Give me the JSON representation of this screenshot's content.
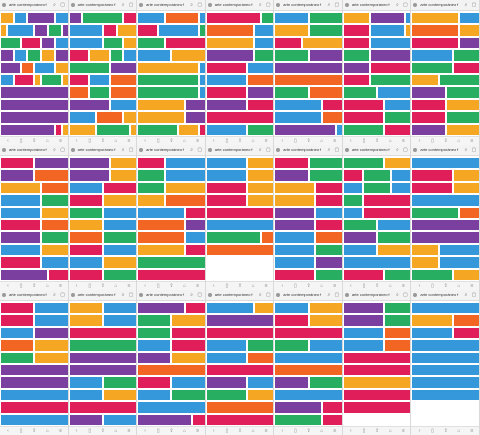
{
  "palette": {
    "R": "#e01e5a",
    "B": "#3498db",
    "G": "#27ae60",
    "Y": "#f5a623",
    "P": "#7b3fa0",
    "O": "#f26522",
    "W": "#ffffff"
  },
  "browser": {
    "url_text": "arte contemporáneo",
    "icons": [
      "globe-icon",
      "search-icon",
      "tabs-icon"
    ]
  },
  "nav_icons": [
    "back-icon",
    "bookmark-icon",
    "share-icon",
    "home-icon",
    "menu-icon"
  ],
  "screens": [
    {
      "rows": [
        "YYBBPPPPBB",
        "YBBBBPPGGP",
        "GGGRRRPPBB",
        "PPBBGGYYPP",
        "PPPOOBBBYY",
        "BBRRRYGGGY",
        "PPPPPPPPPP",
        "PPPPPPPPPP",
        "PPPPPPPPPP",
        "PPPPPPPPRY"
      ]
    },
    {
      "rows": [
        "PPGGGGGGRR",
        "BBBBBRRYYY",
        "BBBBBGGGYY",
        "RRRYYYGGBB",
        "GGGGGGPPPP",
        "RRRBBBOOOO",
        "OOOGGGOOOO",
        "PPPPPPBBBB",
        "BBBBOOOOYY",
        "YYYYGGGGGY"
      ]
    },
    {
      "rows": [
        "BBBBOOOOOB",
        "RRRBBBBBBG",
        "GGGGRRRRRR",
        "BBBBBYYYYY",
        "YYYYYYYYYB",
        "GGGGGGGGGB",
        "GGGGGGGGGB",
        "YYYYYYYPPP",
        "YYYYYYYPPP",
        "GGGGGGYYYR"
      ]
    },
    {
      "rows": [
        "RRRRRRRRGG",
        "OOOOOOOBBB",
        "YYYYYYYBBB",
        "PPPPPPPGGG",
        "RRRRRRBBBB",
        "BBBBBBOOOO",
        "RRRRRRPPPP",
        "PPPPPPRRRR",
        "RRRRRRRRRR",
        "BBBBBBGGGG"
      ]
    },
    {
      "rows": [
        "BBBBBGGGGG",
        "YYYYYGGGGG",
        "RRRRYYYYYY",
        "GGGGGPPPPP",
        "PPPPPPPPPP",
        "OOOOOOOOOO",
        "GGGGGOOOOO",
        "BBBBBBBRRR",
        "BBBBBBBOOO",
        "PPPPPPPPPB"
      ]
    },
    {
      "rows": [
        "YYYYPPPPPB",
        "RRRRBBBBBY",
        "RRRRBBBBBB",
        "GGGGPPPPPP",
        "PPPPRRRRRR",
        "RRRRGGGGGG",
        "GGGGGBBBBB",
        "RRRRRRBBBB",
        "RRRRRRGGGG",
        "GGGGGGRRRR"
      ]
    },
    {
      "rows": [
        "YYYYYYYBBB",
        "OOOOOOOYYY",
        "RRRRRRRPPP",
        "BBBBBBGGGG",
        "GGGGGGRRRR",
        "YYYYGGGGGG",
        "PPPPPGGGGG",
        "RRRRRYYYYY",
        "RRRRRGGGGG",
        "PPPPPYYYYY"
      ]
    },
    {
      "rows": [
        "RRRRRPPPPP",
        "PPPPPOOOOO",
        "YYYYYYOOOO",
        "BBBBBBGGGG",
        "BBBBBBYYYY",
        "RRRRRROOOO",
        "PPPPPPGGGG",
        "BBBBBBYYYY",
        "RRRRRRBBBB",
        "PPPPPPPRRR"
      ]
    },
    {
      "rows": [
        "PPPPPPYYYY",
        "PPPPPPYYYY",
        "BBBBBRRRRR",
        "RRRRRYYYYY",
        "GGGGGBBBBB",
        "YYYYYBBBBB",
        "OOOOOGGGGG",
        "RRRRRBBBBB",
        "BBBBBYYYYY",
        "RRRRRGGGGG"
      ]
    },
    {
      "rows": [
        "RRRRBBBBBB",
        "GGGGBBBBBB",
        "GGGGYYYYYY",
        "YYYYOOOOOO",
        "BBBBBBBRRR",
        "OOOOOOOPPP",
        "OOOOOOOBBB",
        "YYYYYYYRRR",
        "GGGGGGGGGG",
        "RRRRRRRRRR"
      ]
    },
    {
      "rows": [
        "BBBBBBYYYY",
        "BBBBBBYYYY",
        "RRRRRRYYYY",
        "RRRRRRYYYY",
        "RRRRRRRRRR",
        "BBBBBBBBBB",
        "GGGGGGGGOO",
        "OOOOOOOOOO",
        "WWWWWWWWWW",
        "WWWWWWWWWW"
      ]
    },
    {
      "rows": [
        "RRRRRGGGGG",
        "PPPPPGGGGG",
        "YYYYYYRRRR",
        "YYYYYYRRRR",
        "PPPPPPBBBB",
        "PPPPPPRRRR",
        "BBBBBBOOOO",
        "BBBBBBGGGG",
        "BBBBBBPPPP",
        "RRRRRRGGGG"
      ]
    },
    {
      "rows": [
        "GGGGGGYYYY",
        "RRRGGGGBBB",
        "BBBGGGGBBB",
        "GGGRRRRRRR",
        "BBBRRRRRRR",
        "GGGGGBBBBB",
        "PPPPPGGGGG",
        "BBBBBYYYYY",
        "BBBBBBBBBB",
        "RRRRRRGGGG"
      ]
    },
    {
      "rows": [
        "BBBBBBBBBB",
        "RRRRRRYYYY",
        "RRRRRRYYYY",
        "BBBBBBBBBB",
        "GGGGGGGOOO",
        "PPPPPPPPPP",
        "PPPPPPPPPP",
        "YYYYBBBBBB",
        "YYYYBBBBBB",
        "GGGGGGYYYY"
      ]
    },
    {
      "rows": [
        "RRRRRBBBBB",
        "RRRRRBBBBB",
        "BBBBBPPPPP",
        "OOOOOYYYYY",
        "GGGGGYYYYY",
        "PPPPPPPPPP",
        "PPPPPPPPPP",
        "BBBBBBBBBB",
        "RRRRRRRRRR",
        "BBBBBBBBBB"
      ]
    },
    {
      "rows": [
        "YYYYYBBBBB",
        "YYYYYBBBBB",
        "RRRRRRRRRR",
        "GGGGGGGGGG",
        "PPPPPPPPPP",
        "PPPPPPPPPP",
        "BBBBBGGGGG",
        "BBBBBYYYYY",
        "RRRRRRRRRR",
        "PPPPPBBBBB"
      ]
    },
    {
      "rows": [
        "PPPPPPPRRR",
        "GGGGGYYYYY",
        "GGGGGRRRRR",
        "BBBBBRRRRR",
        "PPPPPYYYYY",
        "OOOOOOOOOO",
        "RRRRRBBBBB",
        "BBBBBGGGGG",
        "BBBBBBBBBB",
        "PPPPPPPPRR"
      ]
    },
    {
      "rows": [
        "BBBBBBBYYY",
        "PPPPPPPPPP",
        "RRRRRRRRRR",
        "BBBBBBGGGG",
        "BBBBBBOOOO",
        "RRRRRRRRRR",
        "PPPPPPBBBB",
        "GGGGGGYYYY",
        "OOOOOOOOOO",
        "RRRRRRRRRR"
      ]
    },
    {
      "rows": [
        "BBBBBYYYYY",
        "RRRRRYYYYY",
        "RRRRRRRRRR",
        "GGGGGBBBBB",
        "BBBBBBBBBB",
        "OOOOOOOOOO",
        "PPPPPGGGGG",
        "BBBBBBBBBB",
        "PPPPPPPRRR",
        "GGGGGGGRRR"
      ]
    },
    {
      "rows": [
        "PPPPPPGGGG",
        "PPPPPPGGGG",
        "BBBBBBOOOO",
        "BBBBBBOOOO",
        "RRRRRRRRRR",
        "RRRRRRRRRR",
        "YYYYYYYYYY",
        "RRRRRRRRRR",
        "RRRRRRRRRR",
        "WWWWWWWWWW"
      ]
    },
    {
      "rows": [
        "BBBBBBBBBB",
        "YYYYYYOOOO",
        "BBBBBBRRRR",
        "BBBBBBBBBB",
        "BBBBBBBBBB",
        "BBBBBBBBBB",
        "BBBBBBBBBB",
        "BBBBBBBBBB",
        "WWWWWWWWWW",
        "WWWWWWWWWW"
      ]
    }
  ]
}
